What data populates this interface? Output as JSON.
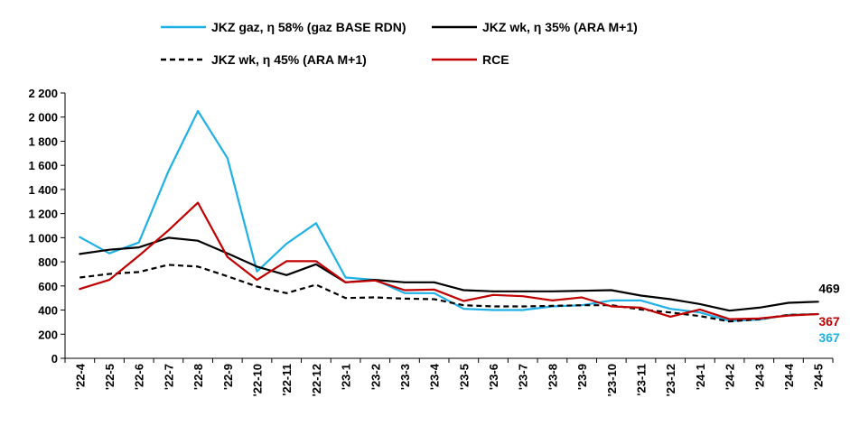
{
  "chart_data": {
    "type": "line",
    "title": "",
    "xlabel": "",
    "ylabel": "",
    "ylim": [
      0,
      2200
    ],
    "yticks": [
      0,
      200,
      400,
      600,
      800,
      1000,
      1200,
      1400,
      1600,
      1800,
      2000,
      2200
    ],
    "ytick_labels": [
      "0",
      "200",
      "400",
      "600",
      "800",
      "1 000",
      "1 200",
      "1 400",
      "1 600",
      "1 800",
      "2 000",
      "2 200"
    ],
    "grid": false,
    "legend_position": "top",
    "categories": [
      "'22-4",
      "'22-5",
      "'22-6",
      "'22-7",
      "'22-8",
      "'22-9",
      "'22-10",
      "'22-11",
      "'22-12",
      "'23-1",
      "'23-2",
      "'23-3",
      "'23-4",
      "'23-5",
      "'23-6",
      "'23-7",
      "'23-8",
      "'23-9",
      "'23-10",
      "'23-11",
      "'23-12",
      "'24-1",
      "'24-2",
      "'24-3",
      "'24-4",
      "'24-5"
    ],
    "series": [
      {
        "name": "JKZ gaz, η 58% (gaz BASE RDN)",
        "color": "#1fb0e6",
        "style": "solid",
        "values": [
          1005,
          870,
          960,
          1550,
          2050,
          1660,
          720,
          950,
          1120,
          670,
          650,
          540,
          540,
          410,
          400,
          400,
          430,
          440,
          480,
          480,
          410,
          380,
          310,
          320,
          360,
          367
        ]
      },
      {
        "name": "JKZ wk, η 35% (ARA M+1)",
        "color": "#000000",
        "style": "solid",
        "values": [
          865,
          900,
          920,
          1000,
          975,
          870,
          760,
          690,
          780,
          630,
          650,
          630,
          630,
          565,
          555,
          555,
          555,
          560,
          565,
          520,
          490,
          450,
          395,
          420,
          460,
          469
        ]
      },
      {
        "name": "JKZ wk, η 45% (ARA M+1)",
        "color": "#000000",
        "style": "dashed",
        "values": [
          670,
          700,
          715,
          775,
          760,
          680,
          595,
          540,
          610,
          500,
          505,
          495,
          490,
          440,
          430,
          430,
          435,
          440,
          440,
          405,
          380,
          350,
          305,
          325,
          360,
          365
        ]
      },
      {
        "name": "RCE",
        "color": "#c00000",
        "style": "solid",
        "values": [
          575,
          650,
          850,
          1060,
          1290,
          840,
          650,
          805,
          805,
          630,
          645,
          565,
          570,
          475,
          525,
          515,
          480,
          505,
          430,
          420,
          345,
          405,
          325,
          330,
          355,
          367
        ]
      }
    ],
    "end_labels": [
      {
        "text": "469",
        "value": 469,
        "color": "#000000"
      },
      {
        "text": "367",
        "value": 367,
        "color": "#c00000"
      },
      {
        "text": "367",
        "value": 367,
        "color": "#1fb0e6"
      }
    ]
  }
}
